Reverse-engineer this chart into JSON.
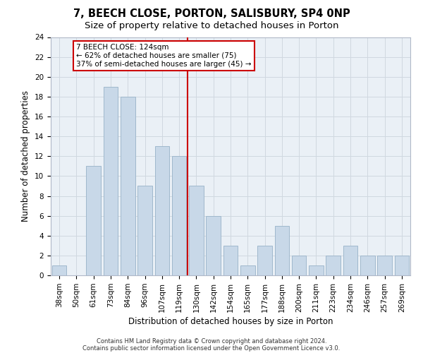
{
  "title1": "7, BEECH CLOSE, PORTON, SALISBURY, SP4 0NP",
  "title2": "Size of property relative to detached houses in Porton",
  "xlabel": "Distribution of detached houses by size in Porton",
  "ylabel": "Number of detached properties",
  "footnote1": "Contains HM Land Registry data © Crown copyright and database right 2024.",
  "footnote2": "Contains public sector information licensed under the Open Government Licence v3.0.",
  "categories": [
    "38sqm",
    "50sqm",
    "61sqm",
    "73sqm",
    "84sqm",
    "96sqm",
    "107sqm",
    "119sqm",
    "130sqm",
    "142sqm",
    "154sqm",
    "165sqm",
    "177sqm",
    "188sqm",
    "200sqm",
    "211sqm",
    "223sqm",
    "234sqm",
    "246sqm",
    "257sqm",
    "269sqm"
  ],
  "values": [
    1,
    0,
    11,
    19,
    18,
    9,
    13,
    12,
    9,
    6,
    3,
    1,
    3,
    5,
    2,
    1,
    2,
    3,
    2,
    2,
    2
  ],
  "bar_color": "#c8d8e8",
  "bar_edgecolor": "#a0b8cc",
  "reference_label": "7 BEECH CLOSE: 124sqm",
  "annotation_smaller": "← 62% of detached houses are smaller (75)",
  "annotation_larger": "37% of semi-detached houses are larger (45) →",
  "annotation_box_color": "#ffffff",
  "annotation_box_edgecolor": "#cc0000",
  "ref_line_color": "#cc0000",
  "ylim": [
    0,
    24
  ],
  "yticks": [
    0,
    2,
    4,
    6,
    8,
    10,
    12,
    14,
    16,
    18,
    20,
    22,
    24
  ],
  "grid_color": "#d0d8e0",
  "background_color": "#eaf0f6",
  "title1_fontsize": 10.5,
  "title2_fontsize": 9.5,
  "xlabel_fontsize": 8.5,
  "ylabel_fontsize": 8.5,
  "tick_fontsize": 7.5,
  "annot_fontsize": 7.5,
  "footnote_fontsize": 6.0
}
